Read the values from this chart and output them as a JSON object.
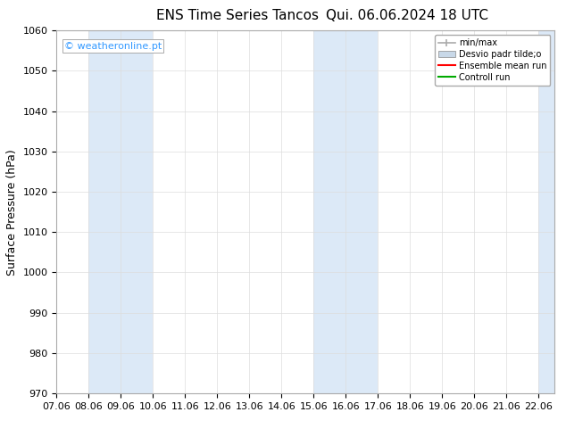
{
  "title_left": "ENS Time Series Tancos",
  "title_right": "Qui. 06.06.2024 18 UTC",
  "ylabel": "Surface Pressure (hPa)",
  "ylim": [
    970,
    1060
  ],
  "yticks": [
    970,
    980,
    990,
    1000,
    1010,
    1020,
    1030,
    1040,
    1050,
    1060
  ],
  "xticks": [
    "07.06",
    "08.06",
    "09.06",
    "10.06",
    "11.06",
    "12.06",
    "13.06",
    "14.06",
    "15.06",
    "16.06",
    "17.06",
    "18.06",
    "19.06",
    "20.06",
    "21.06",
    "22.06"
  ],
  "x_values": [
    7,
    8,
    9,
    10,
    11,
    12,
    13,
    14,
    15,
    16,
    17,
    18,
    19,
    20,
    21,
    22
  ],
  "xlim": [
    7,
    22.5
  ],
  "shaded_bands": [
    {
      "x_start": 8.0,
      "x_end": 10.0
    },
    {
      "x_start": 15.0,
      "x_end": 17.0
    },
    {
      "x_start": 22.0,
      "x_end": 22.5
    }
  ],
  "shade_color": "#dce9f7",
  "watermark": "© weatheronline.pt",
  "watermark_color": "#3399ff",
  "legend_labels": [
    "min/max",
    "Desvio padr tilde;o",
    "Ensemble mean run",
    "Controll run"
  ],
  "minmax_color": "#aaaaaa",
  "desvio_color": "#c8d8e8",
  "ensemble_color": "#ff0000",
  "control_color": "#00aa00",
  "background_color": "#ffffff",
  "title_fontsize": 11,
  "tick_fontsize": 8,
  "ylabel_fontsize": 9,
  "legend_fontsize": 7,
  "watermark_fontsize": 8
}
